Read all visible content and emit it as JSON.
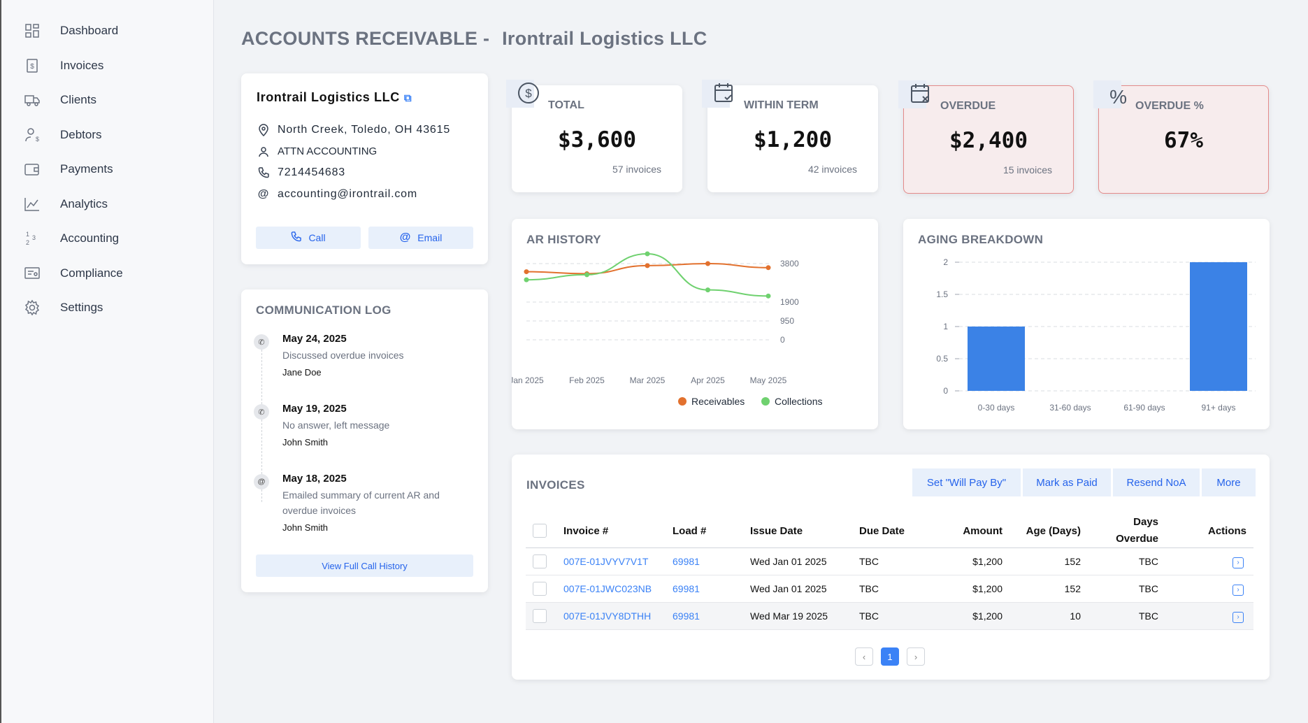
{
  "sidebar": {
    "items": [
      {
        "label": "Dashboard",
        "icon": "dashboard-icon"
      },
      {
        "label": "Invoices",
        "icon": "invoice-icon"
      },
      {
        "label": "Clients",
        "icon": "truck-icon"
      },
      {
        "label": "Debtors",
        "icon": "user-dollar-icon"
      },
      {
        "label": "Payments",
        "icon": "wallet-icon"
      },
      {
        "label": "Analytics",
        "icon": "chart-icon"
      },
      {
        "label": "Accounting",
        "icon": "numbers-icon"
      },
      {
        "label": "Compliance",
        "icon": "certificate-icon"
      },
      {
        "label": "Settings",
        "icon": "gear-icon"
      }
    ]
  },
  "header": {
    "title": "ACCOUNTS RECEIVABLE -",
    "subtitle": "Irontrail Logistics LLC"
  },
  "client": {
    "name": "Irontrail Logistics LLC",
    "address": "North Creek, Toledo, OH 43615",
    "attn": "ATTN ACCOUNTING",
    "phone": "7214454683",
    "email": "accounting@irontrail.com",
    "call_label": "Call",
    "email_label": "Email"
  },
  "comm_log": {
    "title": "COMMUNICATION LOG",
    "entries": [
      {
        "date": "May 24, 2025",
        "desc": "Discussed overdue invoices",
        "author": "Jane Doe",
        "icon": "phone-icon"
      },
      {
        "date": "May 19, 2025",
        "desc": "No answer, left message",
        "author": "John Smith",
        "icon": "phone-icon"
      },
      {
        "date": "May 18, 2025",
        "desc": "Emailed summary of current AR and overdue invoices",
        "author": "John Smith",
        "icon": "at-icon"
      }
    ],
    "view_all_label": "View Full Call History"
  },
  "kpis": [
    {
      "label": "TOTAL",
      "value": "$3,600",
      "sub": "57 invoices"
    },
    {
      "label": "WITHIN TERM",
      "value": "$1,200",
      "sub": "42 invoices"
    },
    {
      "label": "OVERDUE",
      "value": "$2,400",
      "sub": "15 invoices"
    },
    {
      "label": "OVERDUE %",
      "value": "67%",
      "sub": ""
    }
  ],
  "chart_data": [
    {
      "type": "line",
      "title": "AR HISTORY",
      "x": [
        "Jan 2025",
        "Feb 2025",
        "Mar 2025",
        "Apr 2025",
        "May 2025"
      ],
      "y_ticks": [
        "3800",
        "1900",
        "950",
        "0"
      ],
      "series": [
        {
          "name": "Receivables",
          "color": "#e2712e",
          "values": [
            3400,
            3300,
            3700,
            3800,
            3600
          ]
        },
        {
          "name": "Collections",
          "color": "#6fd16f",
          "values": [
            3000,
            3250,
            4300,
            2500,
            2200
          ]
        }
      ],
      "legend_position": "bottom-right"
    },
    {
      "type": "bar",
      "title": "AGING BREAKDOWN",
      "categories": [
        "0-30 days",
        "31-60 days",
        "61-90 days",
        "91+ days"
      ],
      "values": [
        1,
        0,
        0,
        2
      ],
      "y_ticks": [
        "2",
        "1.5",
        "1",
        "0.5",
        "0"
      ],
      "ylim": [
        0,
        2
      ],
      "color": "#3b82e6"
    }
  ],
  "invoices": {
    "title": "INVOICES",
    "actions": [
      "Set \"Will Pay By\"",
      "Mark as Paid",
      "Resend NoA",
      "More"
    ],
    "columns": [
      "Invoice #",
      "Load #",
      "Issue Date",
      "Due Date",
      "Amount",
      "Age (Days)",
      "Days Overdue",
      "Actions"
    ],
    "rows": [
      {
        "invoice": "007E-01JVYV7V1T",
        "load": "69981",
        "issue": "Wed Jan 01 2025",
        "due": "TBC",
        "amount": "$1,200",
        "age": "152",
        "overdue": "TBC"
      },
      {
        "invoice": "007E-01JWC023NB",
        "load": "69981",
        "issue": "Wed Jan 01 2025",
        "due": "TBC",
        "amount": "$1,200",
        "age": "152",
        "overdue": "TBC"
      },
      {
        "invoice": "007E-01JVY8DTHH",
        "load": "69981",
        "issue": "Wed Mar 19 2025",
        "due": "TBC",
        "amount": "$1,200",
        "age": "10",
        "overdue": "TBC"
      }
    ],
    "pagination": {
      "prev": "‹",
      "page": "1",
      "next": "›"
    }
  }
}
